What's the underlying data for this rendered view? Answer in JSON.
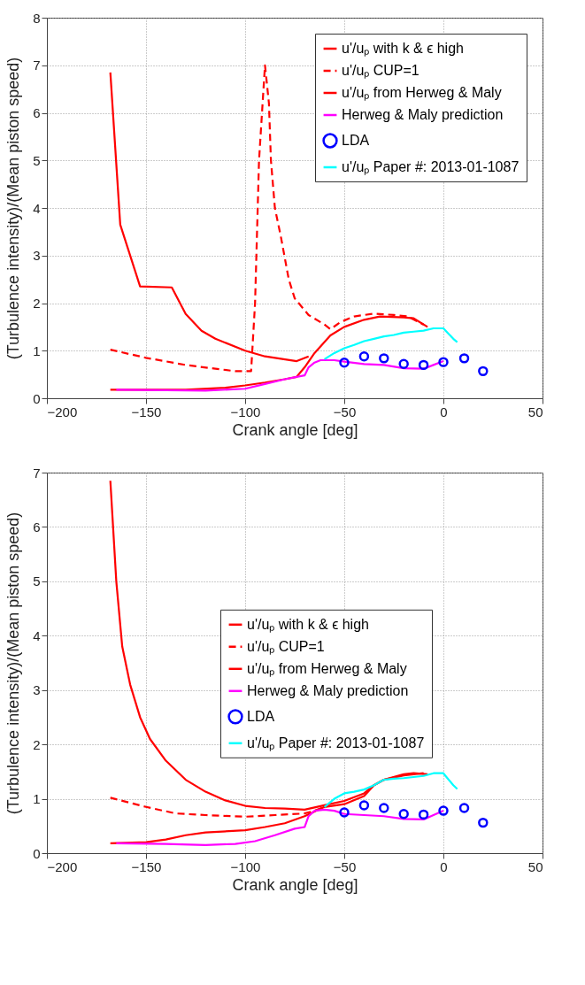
{
  "chart_data": [
    {
      "type": "line",
      "xlabel": "Crank angle [deg]",
      "ylabel": "(Turbulence intensity)/(Mean piston speed)",
      "xlim": [
        -200,
        50
      ],
      "xticks": [
        -200,
        -150,
        -100,
        -50,
        0,
        50
      ],
      "ylim": [
        0,
        8
      ],
      "yticks": [
        0,
        1,
        2,
        3,
        4,
        5,
        6,
        7,
        8
      ],
      "grid": true,
      "legend": "top right",
      "series": [
        {
          "name": "u'/uₚ with k & ϵ high",
          "color": "#ff0000",
          "line_style": "solid",
          "x": [
            -168,
            -163,
            -153,
            -137,
            -130,
            -122,
            -115,
            -100,
            -90,
            -74,
            -68
          ],
          "values": [
            6.85,
            3.65,
            2.35,
            2.33,
            1.77,
            1.42,
            1.25,
            1.0,
            0.88,
            0.78,
            0.88
          ]
        },
        {
          "name": "u'/uₚ  CUP=1",
          "color": "#ff0000",
          "line_style": "dashed",
          "x": [
            -168,
            -150,
            -130,
            -115,
            -105,
            -97,
            -95,
            -93,
            -90,
            -89,
            -88,
            -87,
            -85,
            -82,
            -78,
            -75,
            -68,
            -60,
            -57,
            -52,
            -45,
            -35,
            -25,
            -18,
            -10
          ],
          "values": [
            1.02,
            0.85,
            0.7,
            0.62,
            0.57,
            0.57,
            2.0,
            5.0,
            7.0,
            6.6,
            6.2,
            5.0,
            4.0,
            3.4,
            2.5,
            2.1,
            1.75,
            1.55,
            1.45,
            1.6,
            1.72,
            1.78,
            1.75,
            1.72,
            1.55
          ]
        },
        {
          "name": "u'/uₚ from Herweg & Maly",
          "color": "#ff0000",
          "line_style": "solid",
          "x": [
            -168,
            -130,
            -110,
            -100,
            -90,
            -80,
            -74,
            -70,
            -65,
            -57,
            -50,
            -40,
            -32,
            -20,
            -15,
            -8
          ],
          "values": [
            0.18,
            0.18,
            0.22,
            0.27,
            0.33,
            0.4,
            0.45,
            0.65,
            0.95,
            1.32,
            1.5,
            1.65,
            1.72,
            1.7,
            1.68,
            1.5
          ]
        },
        {
          "name": "Herweg & Maly prediction",
          "color": "#ff00ff",
          "line_style": "solid",
          "x": [
            -165,
            -140,
            -120,
            -100,
            -90,
            -80,
            -70,
            -68,
            -65,
            -62,
            -55,
            -50,
            -40,
            -30,
            -20,
            -10,
            -5,
            0
          ],
          "values": [
            0.18,
            0.17,
            0.16,
            0.2,
            0.3,
            0.4,
            0.48,
            0.65,
            0.75,
            0.8,
            0.8,
            0.77,
            0.72,
            0.7,
            0.63,
            0.62,
            0.7,
            0.78
          ]
        },
        {
          "name": "LDA",
          "color": "#0000ff",
          "type": "scatter",
          "marker": "circle",
          "x": [
            -50,
            -40,
            -30,
            -20,
            -10,
            0,
            10.5,
            20
          ],
          "values": [
            0.75,
            0.88,
            0.84,
            0.72,
            0.7,
            0.76,
            0.84,
            0.57
          ]
        },
        {
          "name": "u'/uₚ Paper #: 2013-01-1087",
          "color": "#00ffff",
          "line_style": "solid",
          "x": [
            -60,
            -55,
            -50,
            -45,
            -40,
            -35,
            -30,
            -25,
            -20,
            -15,
            -10,
            -5,
            0,
            2,
            5,
            7
          ],
          "values": [
            0.82,
            0.95,
            1.05,
            1.12,
            1.2,
            1.25,
            1.3,
            1.33,
            1.38,
            1.4,
            1.42,
            1.47,
            1.47,
            1.38,
            1.25,
            1.18
          ]
        }
      ]
    },
    {
      "type": "line",
      "xlabel": "Crank angle [deg]",
      "ylabel": "(Turbulence intensity)/(Mean piston speed)",
      "xlim": [
        -200,
        50
      ],
      "xticks": [
        -200,
        -150,
        -100,
        -50,
        0,
        50
      ],
      "ylim": [
        0,
        7
      ],
      "yticks": [
        0,
        1,
        2,
        3,
        4,
        5,
        6,
        7
      ],
      "grid": true,
      "legend": "right",
      "series": [
        {
          "name": "u'/uₚ with k & ϵ high",
          "color": "#ff0000",
          "line_style": "solid",
          "x": [
            -168,
            -165,
            -162,
            -158,
            -153,
            -148,
            -140,
            -130,
            -120,
            -110,
            -100,
            -90,
            -80,
            -70,
            -60,
            -50,
            -40,
            -35,
            -30,
            -20,
            -15,
            -8
          ],
          "values": [
            6.85,
            5.0,
            3.8,
            3.1,
            2.5,
            2.1,
            1.7,
            1.35,
            1.13,
            0.97,
            0.87,
            0.83,
            0.82,
            0.8,
            0.88,
            0.96,
            1.1,
            1.25,
            1.35,
            1.45,
            1.47,
            1.45
          ]
        },
        {
          "name": "u'/uₚ  CUP=1",
          "color": "#ff0000",
          "line_style": "dashed",
          "x": [
            -168,
            -150,
            -135,
            -120,
            -100,
            -85,
            -70,
            -65,
            -60
          ],
          "values": [
            1.02,
            0.85,
            0.73,
            0.7,
            0.67,
            0.7,
            0.73,
            0.78,
            0.85
          ]
        },
        {
          "name": "u'/uₚ from Herweg & Maly",
          "color": "#ff0000",
          "line_style": "solid",
          "x": [
            -168,
            -150,
            -140,
            -130,
            -120,
            -100,
            -90,
            -80,
            -70,
            -60,
            -50,
            -40,
            -35,
            -30,
            -20,
            -10
          ],
          "values": [
            0.18,
            0.2,
            0.25,
            0.33,
            0.38,
            0.42,
            0.48,
            0.55,
            0.68,
            0.85,
            0.9,
            1.05,
            1.25,
            1.35,
            1.43,
            1.47
          ]
        },
        {
          "name": "Herweg & Maly prediction",
          "color": "#ff00ff",
          "line_style": "solid",
          "x": [
            -165,
            -140,
            -120,
            -105,
            -95,
            -85,
            -75,
            -70,
            -68,
            -65,
            -60,
            -55,
            -50,
            -40,
            -30,
            -20,
            -10,
            -5,
            0
          ],
          "values": [
            0.18,
            0.17,
            0.15,
            0.17,
            0.22,
            0.33,
            0.45,
            0.48,
            0.68,
            0.78,
            0.8,
            0.78,
            0.72,
            0.7,
            0.68,
            0.63,
            0.62,
            0.7,
            0.78
          ]
        },
        {
          "name": "LDA",
          "color": "#0000ff",
          "type": "scatter",
          "marker": "circle",
          "x": [
            -50,
            -40,
            -30,
            -20,
            -10,
            0,
            10.5,
            20
          ],
          "values": [
            0.75,
            0.88,
            0.83,
            0.72,
            0.71,
            0.78,
            0.83,
            0.56
          ]
        },
        {
          "name": "u'/uₚ Paper #: 2013-01-1087",
          "color": "#00ffff",
          "line_style": "solid",
          "x": [
            -60,
            -55,
            -50,
            -45,
            -40,
            -35,
            -30,
            -25,
            -20,
            -15,
            -10,
            -5,
            0,
            2,
            5,
            7
          ],
          "values": [
            0.85,
            1.0,
            1.1,
            1.13,
            1.17,
            1.25,
            1.35,
            1.37,
            1.38,
            1.4,
            1.42,
            1.47,
            1.47,
            1.38,
            1.25,
            1.18
          ]
        }
      ]
    }
  ]
}
